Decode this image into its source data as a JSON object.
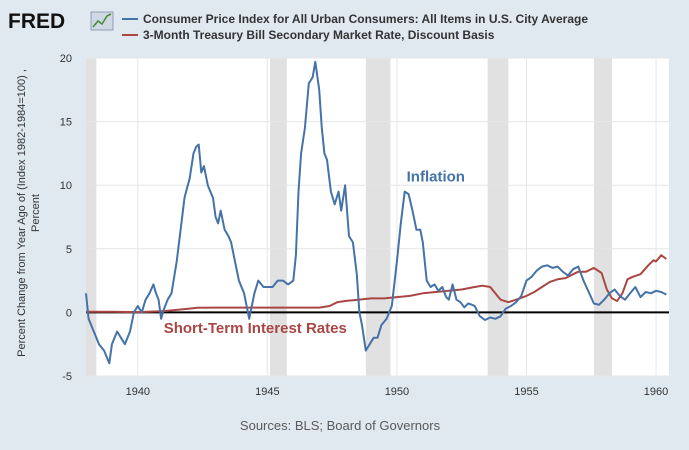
{
  "logo": {
    "text": "FRED",
    "icon": "fred-chart-icon"
  },
  "source_text": "Sources: BLS; Board of Governors",
  "chart_data": {
    "type": "line",
    "ylabel_lines": [
      "Percent Change from Year Ago of (Index 1982-1984=100) ,",
      "Percent"
    ],
    "xlim": [
      1938.0,
      1960.5
    ],
    "ylim": [
      -5,
      20
    ],
    "yticks": [
      -5,
      0,
      5,
      10,
      15,
      20
    ],
    "xticks": [
      1940,
      1945,
      1950,
      1955,
      1960
    ],
    "grid": true,
    "recessions": [
      [
        1938.0,
        1938.4
      ],
      [
        1945.1,
        1945.75
      ],
      [
        1948.8,
        1949.75
      ],
      [
        1953.5,
        1954.3
      ],
      [
        1957.6,
        1958.3
      ]
    ],
    "series": [
      {
        "name": "Consumer Price Index for All Urban Consumers: All Items in U.S. City Average",
        "color": "#4572a7",
        "x": [
          1938.0,
          1938.1,
          1938.3,
          1938.5,
          1938.7,
          1938.9,
          1939.0,
          1939.2,
          1939.35,
          1939.5,
          1939.7,
          1939.85,
          1940.0,
          1940.15,
          1940.3,
          1940.45,
          1940.6,
          1940.7,
          1940.8,
          1940.9,
          1941.0,
          1941.15,
          1941.3,
          1941.5,
          1941.65,
          1941.8,
          1941.9,
          1942.0,
          1942.15,
          1942.25,
          1942.35,
          1942.45,
          1942.55,
          1942.7,
          1942.8,
          1942.9,
          1943.0,
          1943.1,
          1943.2,
          1943.35,
          1943.5,
          1943.6,
          1943.75,
          1943.9,
          1944.1,
          1944.3,
          1944.5,
          1944.65,
          1944.85,
          1945.0,
          1945.2,
          1945.4,
          1945.6,
          1945.8,
          1946.0,
          1946.1,
          1946.2,
          1946.3,
          1946.45,
          1946.6,
          1946.75,
          1946.85,
          1947.0,
          1947.1,
          1947.2,
          1947.3,
          1947.45,
          1947.6,
          1947.75,
          1947.85,
          1948.0,
          1948.15,
          1948.3,
          1948.45,
          1948.55,
          1948.65,
          1948.8,
          1948.95,
          1949.1,
          1949.25,
          1949.4,
          1949.6,
          1949.8,
          1950.0,
          1950.15,
          1950.3,
          1950.45,
          1950.6,
          1950.75,
          1950.9,
          1951.0,
          1951.15,
          1951.3,
          1951.45,
          1951.6,
          1951.75,
          1951.9,
          1952.0,
          1952.15,
          1952.3,
          1952.45,
          1952.6,
          1952.75,
          1952.9,
          1953.0,
          1953.2,
          1953.4,
          1953.6,
          1953.8,
          1954.0,
          1954.2,
          1954.4,
          1954.6,
          1954.8,
          1955.0,
          1955.2,
          1955.4,
          1955.6,
          1955.8,
          1956.0,
          1956.2,
          1956.4,
          1956.6,
          1956.8,
          1957.0,
          1957.2,
          1957.4,
          1957.6,
          1957.8,
          1958.0,
          1958.2,
          1958.4,
          1958.6,
          1958.8,
          1959.0,
          1959.2,
          1959.4,
          1959.6,
          1959.8,
          1960.0,
          1960.2,
          1960.4
        ],
        "y": [
          1.5,
          -0.5,
          -1.5,
          -2.5,
          -3.0,
          -4.0,
          -2.5,
          -1.5,
          -2.0,
          -2.5,
          -1.5,
          0.0,
          0.5,
          0.0,
          1.0,
          1.5,
          2.2,
          1.5,
          1.0,
          -0.5,
          0.2,
          1.0,
          1.5,
          4.0,
          6.5,
          9.0,
          9.8,
          10.5,
          12.5,
          13.0,
          13.2,
          11.0,
          11.5,
          10.0,
          9.5,
          9.0,
          7.5,
          7.0,
          8.0,
          6.5,
          6.0,
          5.5,
          4.0,
          2.5,
          1.5,
          -0.5,
          1.5,
          2.5,
          2.0,
          2.0,
          2.0,
          2.5,
          2.5,
          2.2,
          2.5,
          4.5,
          9.5,
          12.5,
          14.5,
          18.0,
          18.5,
          19.7,
          17.5,
          14.5,
          12.5,
          12.0,
          9.5,
          8.5,
          9.5,
          8.0,
          10.0,
          6.0,
          5.5,
          3.0,
          0.0,
          -1.0,
          -3.0,
          -2.5,
          -2.0,
          -2.0,
          -1.0,
          -0.5,
          0.5,
          4.0,
          7.0,
          9.5,
          9.3,
          8.0,
          6.5,
          6.5,
          5.5,
          2.5,
          2.0,
          2.2,
          1.7,
          2.0,
          1.2,
          1.0,
          2.2,
          1.0,
          0.8,
          0.4,
          0.7,
          0.6,
          0.5,
          -0.3,
          -0.6,
          -0.4,
          -0.5,
          -0.3,
          0.3,
          0.5,
          0.8,
          1.3,
          2.5,
          2.8,
          3.3,
          3.6,
          3.7,
          3.5,
          3.6,
          3.2,
          2.9,
          3.4,
          3.6,
          2.5,
          1.6,
          0.7,
          0.6,
          1.0,
          1.5,
          1.8,
          1.3,
          1.0,
          1.5,
          2.0,
          1.2,
          1.6,
          1.5,
          1.7,
          1.6,
          1.4
        ],
        "label": "Inflation",
        "label_x": 1951.5,
        "label_y": 10.3
      },
      {
        "name": "3-Month Treasury Bill Secondary Market Rate, Discount Basis",
        "color": "#aa4643",
        "x": [
          1938.0,
          1939.0,
          1940.0,
          1941.0,
          1941.5,
          1942.0,
          1942.3,
          1943.0,
          1944.0,
          1945.0,
          1946.0,
          1946.5,
          1947.0,
          1947.4,
          1947.7,
          1948.0,
          1948.5,
          1949.0,
          1949.5,
          1950.0,
          1950.5,
          1951.0,
          1951.5,
          1952.0,
          1952.5,
          1953.0,
          1953.3,
          1953.6,
          1954.0,
          1954.3,
          1954.6,
          1955.0,
          1955.3,
          1955.6,
          1955.9,
          1956.2,
          1956.5,
          1956.8,
          1957.0,
          1957.3,
          1957.6,
          1957.9,
          1958.1,
          1958.3,
          1958.5,
          1958.7,
          1958.9,
          1959.1,
          1959.4,
          1959.7,
          1959.9,
          1960.0,
          1960.2,
          1960.4
        ],
        "y": [
          0.05,
          0.05,
          0.02,
          0.1,
          0.2,
          0.3,
          0.37,
          0.38,
          0.38,
          0.38,
          0.38,
          0.38,
          0.38,
          0.5,
          0.8,
          0.9,
          1.0,
          1.1,
          1.1,
          1.2,
          1.3,
          1.5,
          1.6,
          1.7,
          1.8,
          2.0,
          2.1,
          2.0,
          1.0,
          0.8,
          1.0,
          1.3,
          1.6,
          2.0,
          2.4,
          2.6,
          2.7,
          3.0,
          3.2,
          3.2,
          3.5,
          3.1,
          1.8,
          1.1,
          0.9,
          1.5,
          2.6,
          2.8,
          3.0,
          3.7,
          4.1,
          4.0,
          4.5,
          4.2
        ],
        "label": "Short-Term Interest Rates",
        "label_x": 1941.0,
        "label_y": -1.6
      }
    ]
  }
}
